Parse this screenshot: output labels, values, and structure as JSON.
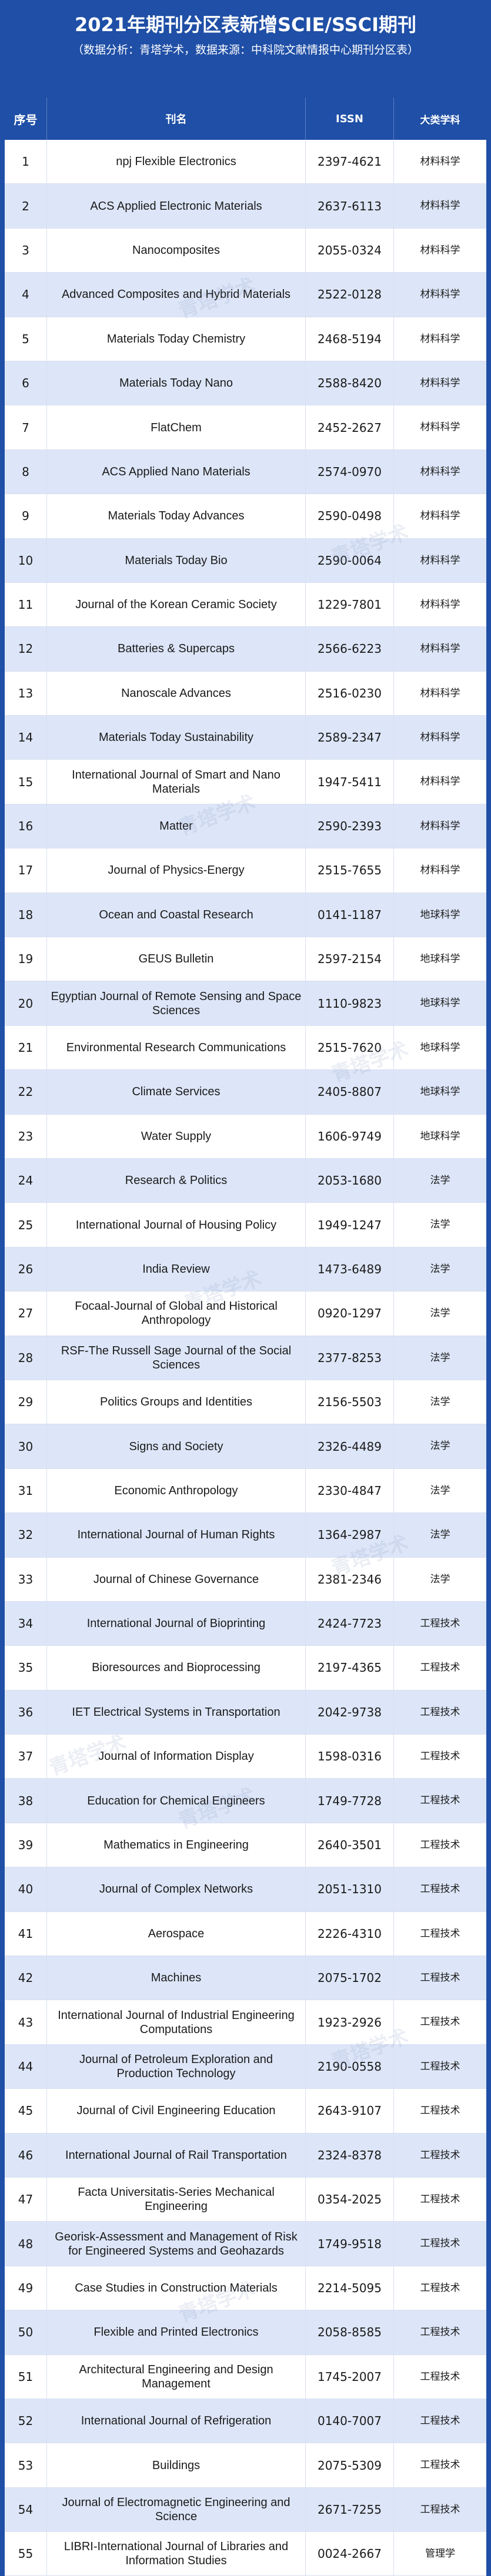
{
  "header": {
    "title": "2021年期刊分区表新增SCIE/SSCI期刊",
    "subtitle": "（数据分析：青塔学术，数据来源：中科院文献情报中心期刊分区表）"
  },
  "table": {
    "columns": [
      "序号",
      "刊名",
      "ISSN",
      "大类学科"
    ],
    "rows": [
      [
        "1",
        "npj Flexible Electronics",
        "2397-4621",
        "材料科学"
      ],
      [
        "2",
        "ACS Applied Electronic Materials",
        "2637-6113",
        "材料科学"
      ],
      [
        "3",
        "Nanocomposites",
        "2055-0324",
        "材料科学"
      ],
      [
        "4",
        "Advanced Composites and Hybrid Materials",
        "2522-0128",
        "材料科学"
      ],
      [
        "5",
        "Materials Today Chemistry",
        "2468-5194",
        "材料科学"
      ],
      [
        "6",
        "Materials Today Nano",
        "2588-8420",
        "材料科学"
      ],
      [
        "7",
        "FlatChem",
        "2452-2627",
        "材料科学"
      ],
      [
        "8",
        "ACS Applied Nano Materials",
        "2574-0970",
        "材料科学"
      ],
      [
        "9",
        "Materials Today Advances",
        "2590-0498",
        "材料科学"
      ],
      [
        "10",
        "Materials Today Bio",
        "2590-0064",
        "材料科学"
      ],
      [
        "11",
        "Journal of the Korean Ceramic Society",
        "1229-7801",
        "材料科学"
      ],
      [
        "12",
        "Batteries & Supercaps",
        "2566-6223",
        "材料科学"
      ],
      [
        "13",
        "Nanoscale Advances",
        "2516-0230",
        "材料科学"
      ],
      [
        "14",
        "Materials Today Sustainability",
        "2589-2347",
        "材料科学"
      ],
      [
        "15",
        "International Journal of Smart and Nano Materials",
        "1947-5411",
        "材料科学"
      ],
      [
        "16",
        "Matter",
        "2590-2393",
        "材料科学"
      ],
      [
        "17",
        "Journal of Physics-Energy",
        "2515-7655",
        "材料科学"
      ],
      [
        "18",
        "Ocean and Coastal Research",
        "0141-1187",
        "地球科学"
      ],
      [
        "19",
        "GEUS Bulletin",
        "2597-2154",
        "地球科学"
      ],
      [
        "20",
        "Egyptian Journal of Remote Sensing and Space Sciences",
        "1110-9823",
        "地球科学"
      ],
      [
        "21",
        "Environmental Research Communications",
        "2515-7620",
        "地球科学"
      ],
      [
        "22",
        "Climate Services",
        "2405-8807",
        "地球科学"
      ],
      [
        "23",
        "Water Supply",
        "1606-9749",
        "地球科学"
      ],
      [
        "24",
        "Research & Politics",
        "2053-1680",
        "法学"
      ],
      [
        "25",
        "International Journal of Housing Policy",
        "1949-1247",
        "法学"
      ],
      [
        "26",
        "India Review",
        "1473-6489",
        "法学"
      ],
      [
        "27",
        "Focaal-Journal of Global and Historical Anthropology",
        "0920-1297",
        "法学"
      ],
      [
        "28",
        "RSF-The Russell Sage Journal of the Social Sciences",
        "2377-8253",
        "法学"
      ],
      [
        "29",
        "Politics Groups and Identities",
        "2156-5503",
        "法学"
      ],
      [
        "30",
        "Signs and Society",
        "2326-4489",
        "法学"
      ],
      [
        "31",
        "Economic Anthropology",
        "2330-4847",
        "法学"
      ],
      [
        "32",
        "International Journal of Human Rights",
        "1364-2987",
        "法学"
      ],
      [
        "33",
        "Journal of Chinese Governance",
        "2381-2346",
        "法学"
      ],
      [
        "34",
        "International Journal of Bioprinting",
        "2424-7723",
        "工程技术"
      ],
      [
        "35",
        "Bioresources and Bioprocessing",
        "2197-4365",
        "工程技术"
      ],
      [
        "36",
        "IET Electrical Systems in Transportation",
        "2042-9738",
        "工程技术"
      ],
      [
        "37",
        "Journal of Information Display",
        "1598-0316",
        "工程技术"
      ],
      [
        "38",
        "Education for Chemical Engineers",
        "1749-7728",
        "工程技术"
      ],
      [
        "39",
        "Mathematics in Engineering",
        "2640-3501",
        "工程技术"
      ],
      [
        "40",
        "Journal of Complex Networks",
        "2051-1310",
        "工程技术"
      ],
      [
        "41",
        "Aerospace",
        "2226-4310",
        "工程技术"
      ],
      [
        "42",
        "Machines",
        "2075-1702",
        "工程技术"
      ],
      [
        "43",
        "International Journal of Industrial Engineering Computations",
        "1923-2926",
        "工程技术"
      ],
      [
        "44",
        "Journal of Petroleum Exploration and Production Technology",
        "2190-0558",
        "工程技术"
      ],
      [
        "45",
        "Journal of Civil Engineering Education",
        "2643-9107",
        "工程技术"
      ],
      [
        "46",
        "International Journal of Rail Transportation",
        "2324-8378",
        "工程技术"
      ],
      [
        "47",
        "Facta Universitatis-Series Mechanical Engineering",
        "0354-2025",
        "工程技术"
      ],
      [
        "48",
        "Georisk-Assessment and Management of Risk for Engineered Systems and Geohazards",
        "1749-9518",
        "工程技术"
      ],
      [
        "49",
        "Case Studies in Construction Materials",
        "2214-5095",
        "工程技术"
      ],
      [
        "50",
        "Flexible and Printed Electronics",
        "2058-8585",
        "工程技术"
      ],
      [
        "51",
        "Architectural Engineering and Design Management",
        "1745-2007",
        "工程技术"
      ],
      [
        "52",
        "International Journal of Refrigeration",
        "0140-7007",
        "工程技术"
      ],
      [
        "53",
        "Buildings",
        "2075-5309",
        "工程技术"
      ],
      [
        "54",
        "Journal of Electromagnetic Engineering and Science",
        "2671-7255",
        "工程技术"
      ],
      [
        "55",
        "LIBRI-International Journal of Libraries and Information Studies",
        "0024-2667",
        "管理学"
      ]
    ]
  },
  "watermark": "青塔学术"
}
